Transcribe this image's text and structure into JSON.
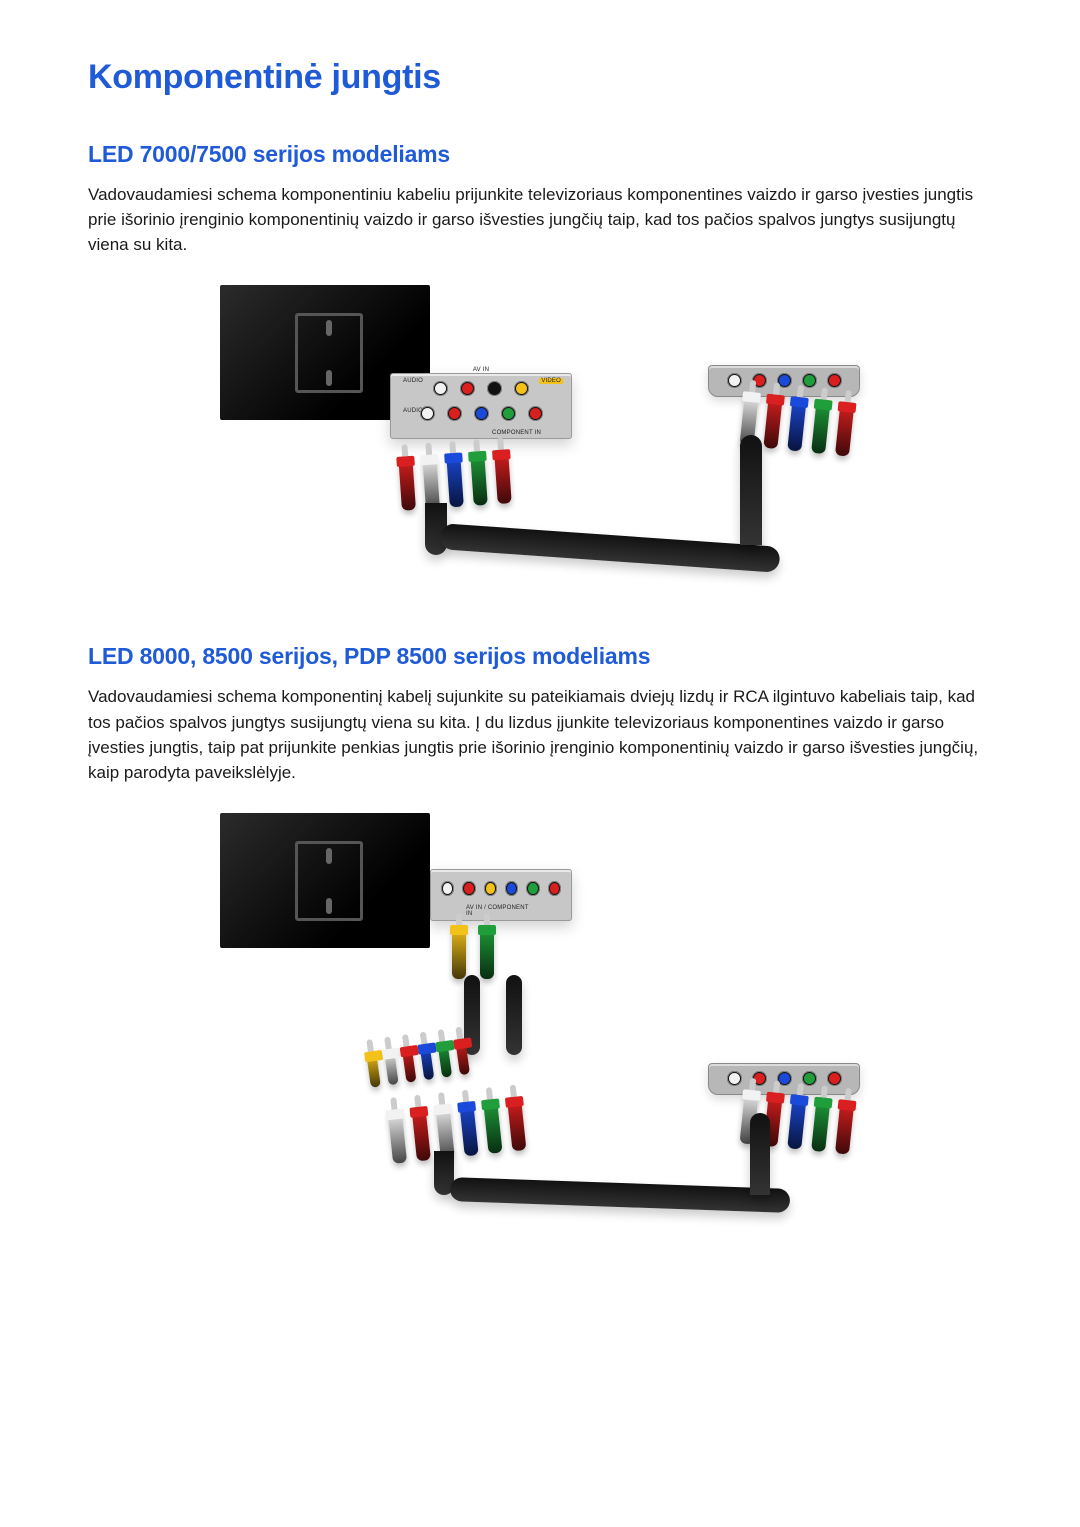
{
  "title": "Komponentinė jungtis",
  "section1": {
    "heading": "LED 7000/7500 serijos modeliams",
    "paragraph": "Vadovaudamiesi schema komponentiniu kabeliu prijunkite televizoriaus komponentines vaizdo ir garso įvesties jungtis prie išorinio įrenginio komponentinių vaizdo ir garso išvesties jungčių taip, kad tos pačios spalvos jungtys susijungtų viena su kita.",
    "diagram": {
      "type": "wiring-diagram",
      "tv_audio_label": "AUDIO",
      "tv_av_label": "AV IN",
      "tv_component_label": "COMPONENT IN",
      "tv_video_pill": "VIDEO",
      "adapter_top_ports": [
        "white",
        "red",
        "black",
        "yellow"
      ],
      "adapter_bottom_ports": [
        "white",
        "red",
        "blue",
        "green",
        "red"
      ],
      "left_plugs": [
        "red",
        "white",
        "blue",
        "green",
        "red"
      ],
      "right_plugs": [
        "white",
        "red",
        "blue",
        "green",
        "red"
      ],
      "dest_ports": [
        "white",
        "red",
        "blue",
        "green",
        "red"
      ]
    }
  },
  "section2": {
    "heading": "LED 8000, 8500 serijos, PDP 8500 serijos modeliams",
    "paragraph": "Vadovaudamiesi schema komponentinį kabelį sujunkite su pateikiamais dviejų lizdų ir RCA ilgintuvo kabeliais taip, kad tos pačios spalvos jungtys susijungtų viena su kita. Į du lizdus įjunkite televizoriaus komponentines vaizdo ir garso įvesties jungtis, taip pat prijunkite penkias jungtis prie išorinio įrenginio komponentinių vaizdo ir garso išvesties jungčių, kaip parodyta paveikslėlyje.",
    "diagram": {
      "type": "wiring-diagram",
      "adapter_label": "AV IN / COMPONENT IN",
      "adapter_ports": [
        "white",
        "red",
        "yellow",
        "blue",
        "green",
        "red"
      ],
      "top_plugs": [
        "yellow",
        "green"
      ],
      "fanout_plugs": [
        "yellow",
        "white",
        "red",
        "blue",
        "green",
        "red"
      ],
      "lower_plugs": [
        "white",
        "red",
        "white",
        "blue",
        "green",
        "red"
      ],
      "right_plugs": [
        "white",
        "red",
        "blue",
        "green",
        "red"
      ],
      "dest_ports": [
        "white",
        "red",
        "blue",
        "green",
        "red"
      ]
    }
  },
  "colors": {
    "heading": "#1f5bd6",
    "text": "#1a1a1a",
    "plug": {
      "white": "#f2f2f2",
      "red": "#d91f1f",
      "yellow": "#f2c21b",
      "blue": "#1b49d9",
      "green": "#1f9e3b",
      "black": "#111111"
    }
  }
}
